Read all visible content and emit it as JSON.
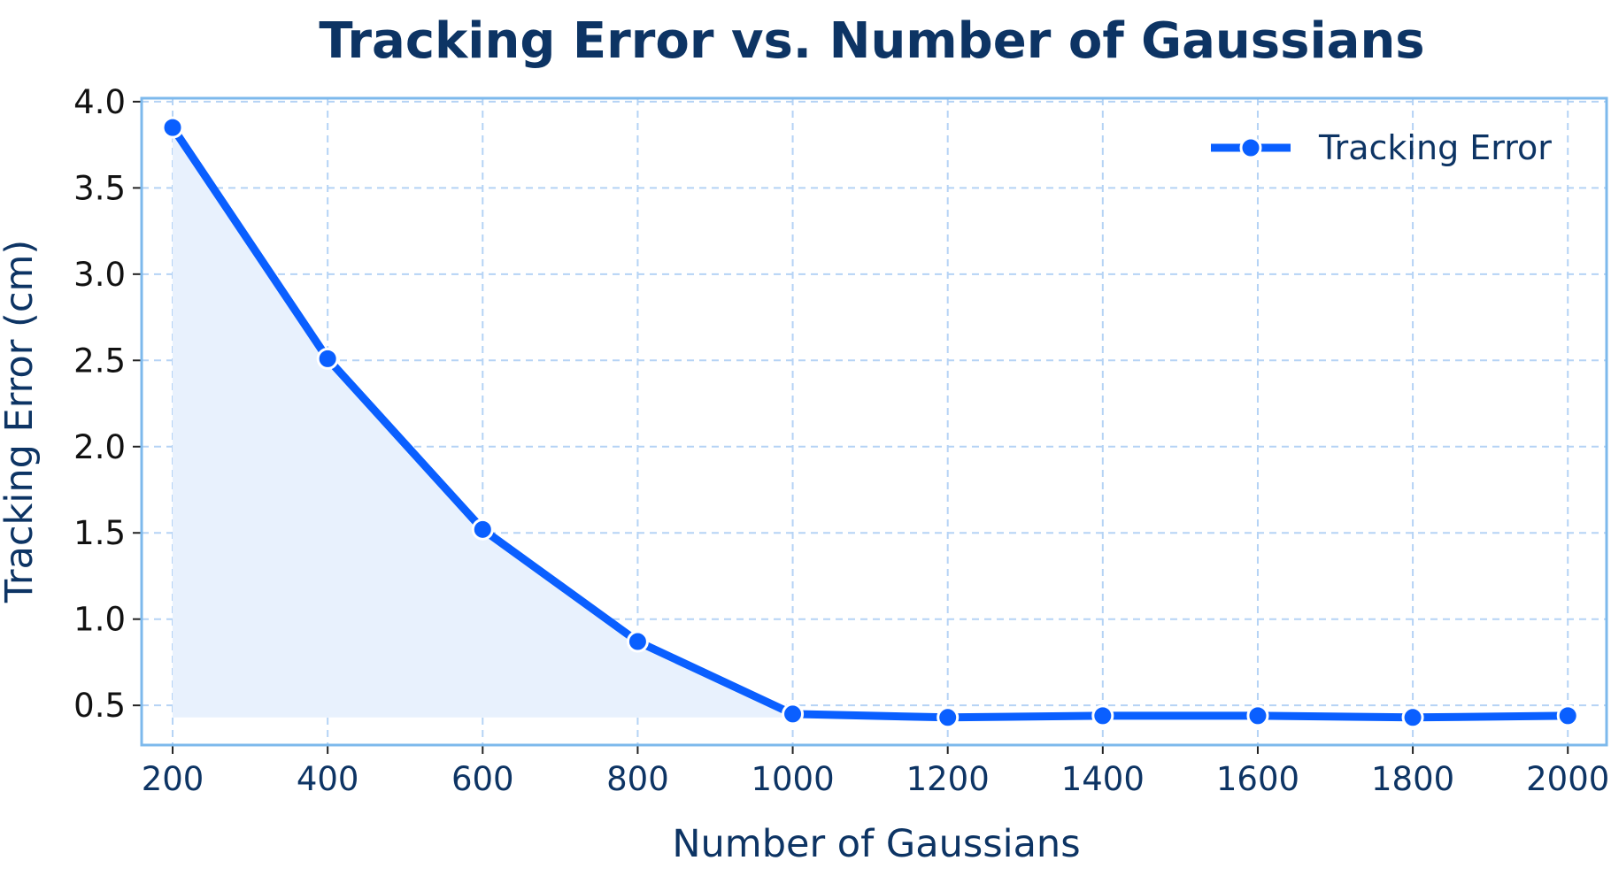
{
  "chart_data": {
    "type": "line",
    "title": "Tracking Error vs. Number of Gaussians",
    "xlabel": "Number of Gaussians",
    "ylabel": "Tracking Error (cm)",
    "x": [
      200,
      400,
      600,
      800,
      1000,
      1200,
      1400,
      1600,
      1800,
      2000
    ],
    "series": [
      {
        "name": "Tracking Error",
        "values": [
          3.85,
          2.51,
          1.52,
          0.87,
          0.45,
          0.43,
          0.44,
          0.44,
          0.43,
          0.44
        ],
        "color": "#0a5fff",
        "fill": "#e8f1fd",
        "marker": "circle"
      }
    ],
    "xticks": [
      "200",
      "400",
      "600",
      "800",
      "1000",
      "1200",
      "1400",
      "1600",
      "1800",
      "2000"
    ],
    "yticks": [
      "0.5",
      "1.0",
      "1.5",
      "2.0",
      "2.5",
      "3.0",
      "3.5",
      "4.0"
    ],
    "xlim": [
      160,
      2050
    ],
    "ylim": [
      0.27,
      4.02
    ],
    "grid": true,
    "legend_position": "top-right",
    "colors": {
      "frame": "#7db9ec",
      "grid": "#b5d3f5",
      "text": "#0d3464"
    }
  }
}
